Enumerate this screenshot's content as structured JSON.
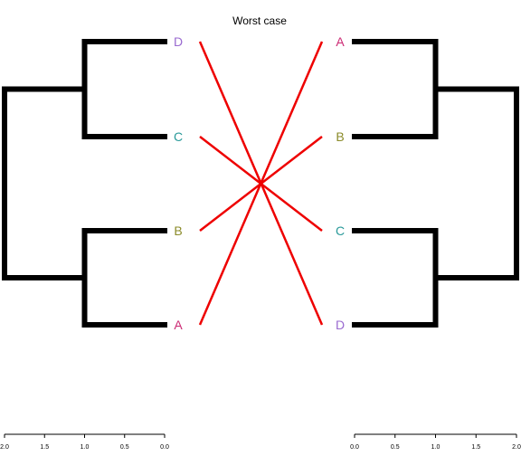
{
  "chart_data": {
    "type": "tanglegram",
    "title": "Worst case",
    "left_tree": {
      "leaves": [
        "D",
        "C",
        "B",
        "A"
      ],
      "merges": [
        {
          "a": "D",
          "b": "C",
          "height": 1.0
        },
        {
          "a": "B",
          "b": "A",
          "height": 1.0
        },
        {
          "a": "D+C",
          "b": "B+A",
          "height": 2.0
        }
      ],
      "axis_ticks": [
        "2.0",
        "1.5",
        "1.0",
        "0.5",
        "0.0"
      ]
    },
    "right_tree": {
      "leaves": [
        "A",
        "B",
        "C",
        "D"
      ],
      "merges": [
        {
          "a": "A",
          "b": "B",
          "height": 1.0
        },
        {
          "a": "C",
          "b": "D",
          "height": 1.0
        },
        {
          "a": "A+B",
          "b": "C+D",
          "height": 2.0
        }
      ],
      "axis_ticks": [
        "0.0",
        "0.5",
        "1.0",
        "1.5",
        "2.0"
      ]
    },
    "connections": [
      {
        "from": "D",
        "to": "D"
      },
      {
        "from": "C",
        "to": "C"
      },
      {
        "from": "B",
        "to": "B"
      },
      {
        "from": "A",
        "to": "A"
      }
    ],
    "leaf_colors": {
      "A": "#cc2a74",
      "B": "#8b8b2a",
      "C": "#2a9a9a",
      "D": "#9a6ad0"
    },
    "connector_color": "#ee0000",
    "branch_color": "#000000"
  }
}
